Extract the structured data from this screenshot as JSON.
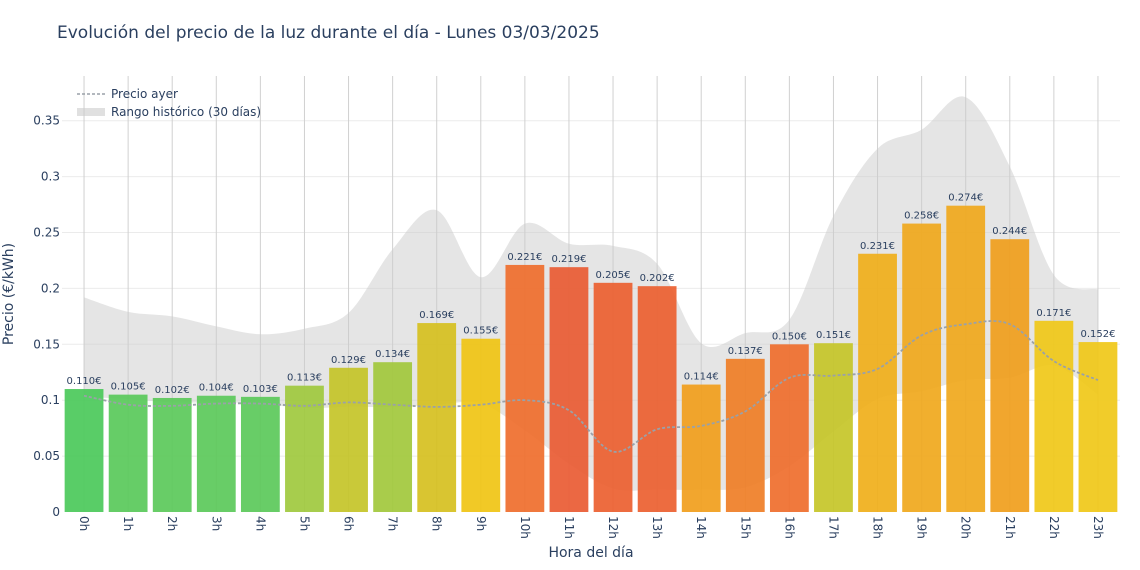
{
  "chart_data": {
    "type": "bar",
    "title": "Evolución del precio de la luz durante el día - Lunes 03/03/2025",
    "xlabel": "Hora del día",
    "ylabel": "Precio (€/kWh)",
    "ylim": [
      0,
      0.39
    ],
    "yticks": [
      0,
      0.05,
      0.1,
      0.15,
      0.2,
      0.25,
      0.3,
      0.35
    ],
    "ytick_labels": [
      "0",
      "0.05",
      "0.1",
      "0.15",
      "0.2",
      "0.25",
      "0.3",
      "0.35"
    ],
    "categories": [
      "0h",
      "1h",
      "2h",
      "3h",
      "4h",
      "5h",
      "6h",
      "7h",
      "8h",
      "9h",
      "10h",
      "11h",
      "12h",
      "13h",
      "14h",
      "15h",
      "16h",
      "17h",
      "18h",
      "19h",
      "20h",
      "21h",
      "22h",
      "23h"
    ],
    "grid": true,
    "legend_position": "top-left",
    "series": [
      {
        "name": "",
        "kind": "bar",
        "values": [
          0.11,
          0.105,
          0.102,
          0.104,
          0.103,
          0.113,
          0.129,
          0.134,
          0.169,
          0.155,
          0.221,
          0.219,
          0.205,
          0.202,
          0.114,
          0.137,
          0.15,
          0.151,
          0.231,
          0.258,
          0.274,
          0.244,
          0.171,
          0.152
        ],
        "labels": [
          "0.110€",
          "0.105€",
          "0.102€",
          "0.104€",
          "0.103€",
          "0.113€",
          "0.129€",
          "0.134€",
          "0.169€",
          "0.155€",
          "0.221€",
          "0.219€",
          "0.205€",
          "0.202€",
          "0.114€",
          "0.137€",
          "0.150€",
          "0.151€",
          "0.231€",
          "0.258€",
          "0.274€",
          "0.244€",
          "0.171€",
          "0.152€"
        ],
        "colors": [
          "#4bc95a",
          "#59c95a",
          "#5bc95a",
          "#5bc95a",
          "#5bc95a",
          "#9fc93e",
          "#c4c428",
          "#a2c83c",
          "#d6c020",
          "#f0c414",
          "#ef6e2c",
          "#e95b33",
          "#ec6030",
          "#ec6030",
          "#f19e1c",
          "#ef7e26",
          "#ef6e2c",
          "#c6c528",
          "#f0af1a",
          "#f0a81c",
          "#f0a81c",
          "#f09e1c",
          "#f0c818",
          "#f0c818"
        ]
      },
      {
        "name": "Precio ayer",
        "kind": "line",
        "color": "#9aa1a8",
        "values": [
          0.104,
          0.096,
          0.095,
          0.097,
          0.097,
          0.095,
          0.098,
          0.096,
          0.094,
          0.096,
          0.1,
          0.091,
          0.054,
          0.074,
          0.077,
          0.09,
          0.12,
          0.122,
          0.128,
          0.158,
          0.168,
          0.168,
          0.135,
          0.118
        ]
      },
      {
        "name": "Rango histórico (30 días)",
        "kind": "band",
        "color": "#cccccc",
        "min": [
          0.103,
          0.101,
          0.098,
          0.098,
          0.097,
          0.093,
          0.094,
          0.094,
          0.096,
          0.097,
          0.073,
          0.043,
          0.021,
          0.02,
          0.02,
          0.022,
          0.041,
          0.072,
          0.101,
          0.108,
          0.118,
          0.12,
          0.131,
          0.105
        ],
        "max": [
          0.192,
          0.179,
          0.175,
          0.166,
          0.159,
          0.164,
          0.178,
          0.235,
          0.27,
          0.21,
          0.258,
          0.24,
          0.238,
          0.222,
          0.151,
          0.16,
          0.172,
          0.265,
          0.325,
          0.342,
          0.371,
          0.309,
          0.212,
          0.199
        ]
      }
    ]
  }
}
